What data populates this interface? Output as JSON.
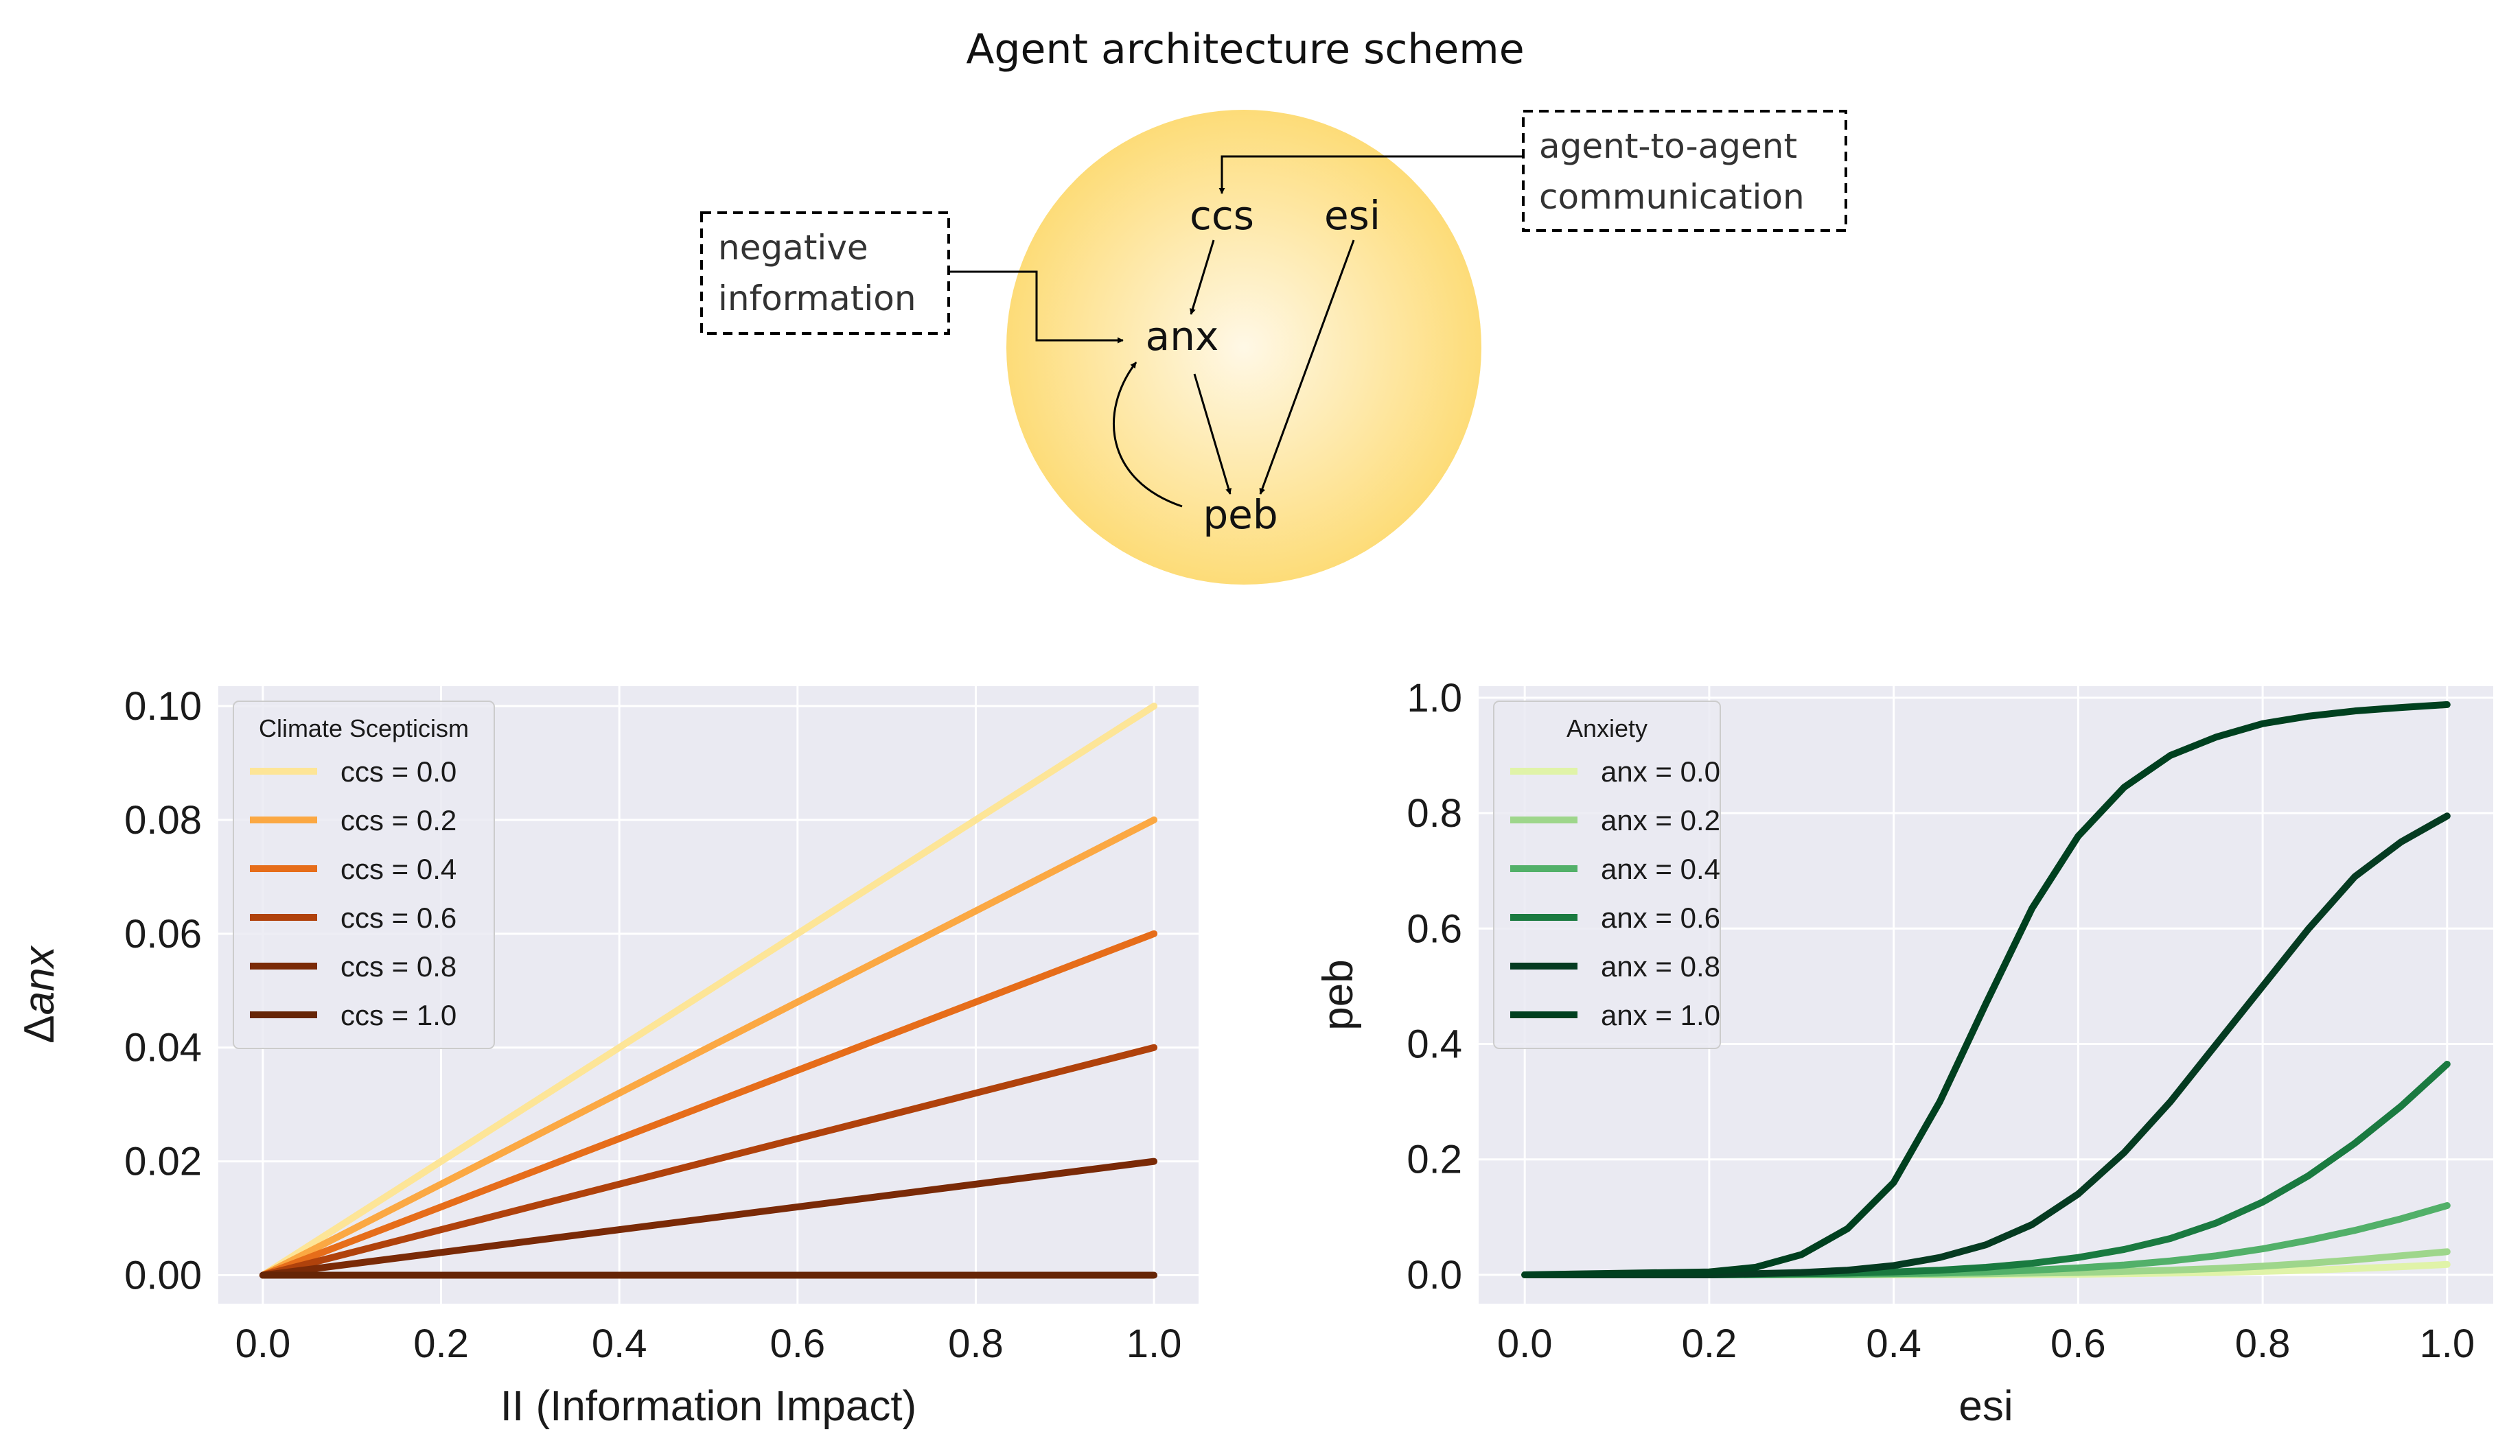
{
  "diagram": {
    "title": "Agent architecture scheme",
    "nodes": {
      "ccs": "ccs",
      "esi": "esi",
      "anx": "anx",
      "peb": "peb"
    },
    "boxes": {
      "negative": [
        "negative",
        "information"
      ],
      "agent": [
        "agent-to-agent",
        "communication"
      ]
    },
    "colors": {
      "circle_center": "#fff8e6",
      "circle_edge": "#fddc78"
    }
  },
  "chart_data": [
    {
      "type": "line",
      "title": "",
      "xlabel": "II (Information Impact)",
      "ylabel": "Δanx",
      "xlim": [
        -0.05,
        1.05
      ],
      "ylim": [
        -0.005,
        0.1035
      ],
      "xticks": [
        0.0,
        0.2,
        0.4,
        0.6,
        0.8,
        1.0
      ],
      "xtick_labels": [
        "0.0",
        "0.2",
        "0.4",
        "0.6",
        "0.8",
        "1.0"
      ],
      "yticks": [
        0.0,
        0.02,
        0.04,
        0.06,
        0.08,
        0.1
      ],
      "ytick_labels": [
        "0.00",
        "0.02",
        "0.04",
        "0.06",
        "0.08",
        "0.10"
      ],
      "grid": true,
      "legend_title": "Climate Scepticism",
      "legend_position": "top-left",
      "x": [
        0.0,
        1.0
      ],
      "series": [
        {
          "name": "ccs = 0.0",
          "color": "#fde597",
          "values": [
            0.0,
            0.1
          ]
        },
        {
          "name": "ccs = 0.2",
          "color": "#fba843",
          "values": [
            0.0,
            0.08
          ]
        },
        {
          "name": "ccs = 0.4",
          "color": "#e66d1a",
          "values": [
            0.0,
            0.06
          ]
        },
        {
          "name": "ccs = 0.6",
          "color": "#b0420c",
          "values": [
            0.0,
            0.04
          ]
        },
        {
          "name": "ccs = 0.8",
          "color": "#7a2a07",
          "values": [
            0.0,
            0.02
          ]
        },
        {
          "name": "ccs = 1.0",
          "color": "#662506",
          "values": [
            0.0,
            0.0
          ]
        }
      ]
    },
    {
      "type": "line",
      "title": "",
      "xlabel": "esi",
      "ylabel": "peb",
      "xlim": [
        -0.05,
        1.05
      ],
      "ylim": [
        -0.05,
        1.02
      ],
      "xticks": [
        0.0,
        0.2,
        0.4,
        0.6,
        0.8,
        1.0
      ],
      "xtick_labels": [
        "0.0",
        "0.2",
        "0.4",
        "0.6",
        "0.8",
        "1.0"
      ],
      "yticks": [
        0.0,
        0.2,
        0.4,
        0.6,
        0.8,
        1.0
      ],
      "ytick_labels": [
        "0.0",
        "0.2",
        "0.4",
        "0.6",
        "0.8",
        "1.0"
      ],
      "grid": true,
      "legend_title": "Anxiety",
      "legend_position": "top-left",
      "x": [
        0.0,
        0.2,
        0.25,
        0.3,
        0.35,
        0.4,
        0.45,
        0.5,
        0.55,
        0.6,
        0.65,
        0.7,
        0.75,
        0.8,
        0.85,
        0.9,
        0.95,
        1.0
      ],
      "series": [
        {
          "name": "anx = 0.0",
          "color": "#e0f3a8",
          "values": [
            0.0,
            0.0,
            0.0,
            0.0,
            0.0,
            0.0,
            0.0,
            0.0,
            0.001,
            0.001,
            0.002,
            0.003,
            0.004,
            0.006,
            0.008,
            0.011,
            0.014,
            0.018
          ]
        },
        {
          "name": "anx = 0.2",
          "color": "#9ed68b",
          "values": [
            0.0,
            0.0,
            0.0,
            0.0,
            0.0,
            0.001,
            0.001,
            0.002,
            0.003,
            0.004,
            0.006,
            0.008,
            0.011,
            0.015,
            0.02,
            0.026,
            0.033,
            0.04
          ]
        },
        {
          "name": "anx = 0.4",
          "color": "#52b069",
          "values": [
            0.0,
            0.0,
            0.0,
            0.001,
            0.001,
            0.002,
            0.003,
            0.005,
            0.008,
            0.012,
            0.017,
            0.024,
            0.033,
            0.045,
            0.06,
            0.077,
            0.097,
            0.12
          ]
        },
        {
          "name": "anx = 0.6",
          "color": "#1a7a40",
          "values": [
            0.0,
            0.0,
            0.001,
            0.002,
            0.003,
            0.005,
            0.008,
            0.013,
            0.02,
            0.03,
            0.044,
            0.063,
            0.09,
            0.126,
            0.172,
            0.228,
            0.292,
            0.365
          ]
        },
        {
          "name": "anx = 0.8",
          "color": "#053b21",
          "values": [
            0.0,
            0.0,
            0.002,
            0.004,
            0.008,
            0.016,
            0.03,
            0.052,
            0.087,
            0.14,
            0.212,
            0.3,
            0.4,
            0.5,
            0.6,
            0.69,
            0.75,
            0.795
          ]
        },
        {
          "name": "anx = 1.0",
          "color": "#00401f",
          "values": [
            0.0,
            0.005,
            0.013,
            0.035,
            0.08,
            0.16,
            0.3,
            0.47,
            0.635,
            0.76,
            0.845,
            0.9,
            0.932,
            0.955,
            0.968,
            0.977,
            0.983,
            0.988
          ]
        }
      ]
    }
  ]
}
